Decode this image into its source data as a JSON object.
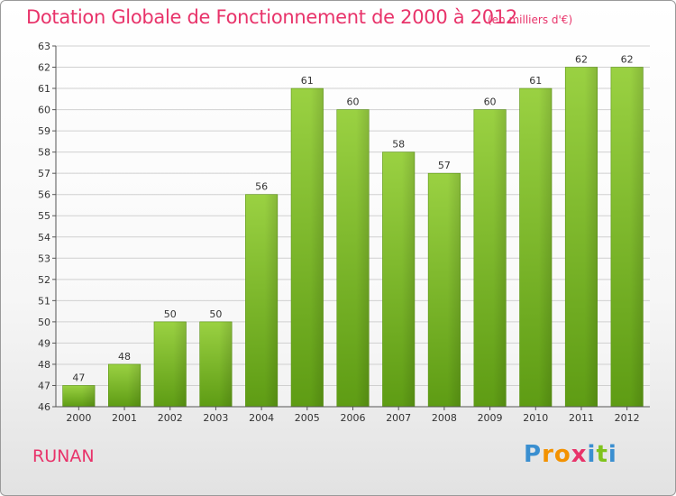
{
  "chart_data": {
    "type": "bar",
    "title": "Dotation Globale de Fonctionnement de 2000 à 2012",
    "subtitle": "(en milliers d'€)",
    "categories": [
      "2000",
      "2001",
      "2002",
      "2003",
      "2004",
      "2005",
      "2006",
      "2007",
      "2008",
      "2009",
      "2010",
      "2011",
      "2012"
    ],
    "values": [
      47,
      48,
      50,
      50,
      56,
      61,
      60,
      58,
      57,
      60,
      61,
      62,
      62
    ],
    "ylim": [
      46,
      63
    ],
    "yticks": [
      46,
      47,
      48,
      49,
      50,
      51,
      52,
      53,
      54,
      55,
      56,
      57,
      58,
      59,
      60,
      61,
      62,
      63
    ],
    "grid": true,
    "bar_color": "#7fc31c"
  },
  "commune": "RUNAN",
  "logo": {
    "letters": [
      "P",
      "r",
      "o",
      "x",
      "i",
      "t",
      "i"
    ],
    "colors": [
      "#3a8fd0",
      "#f39200",
      "#f39200",
      "#e8336a",
      "#3a8fd0",
      "#7fc31c",
      "#3a8fd0"
    ]
  }
}
